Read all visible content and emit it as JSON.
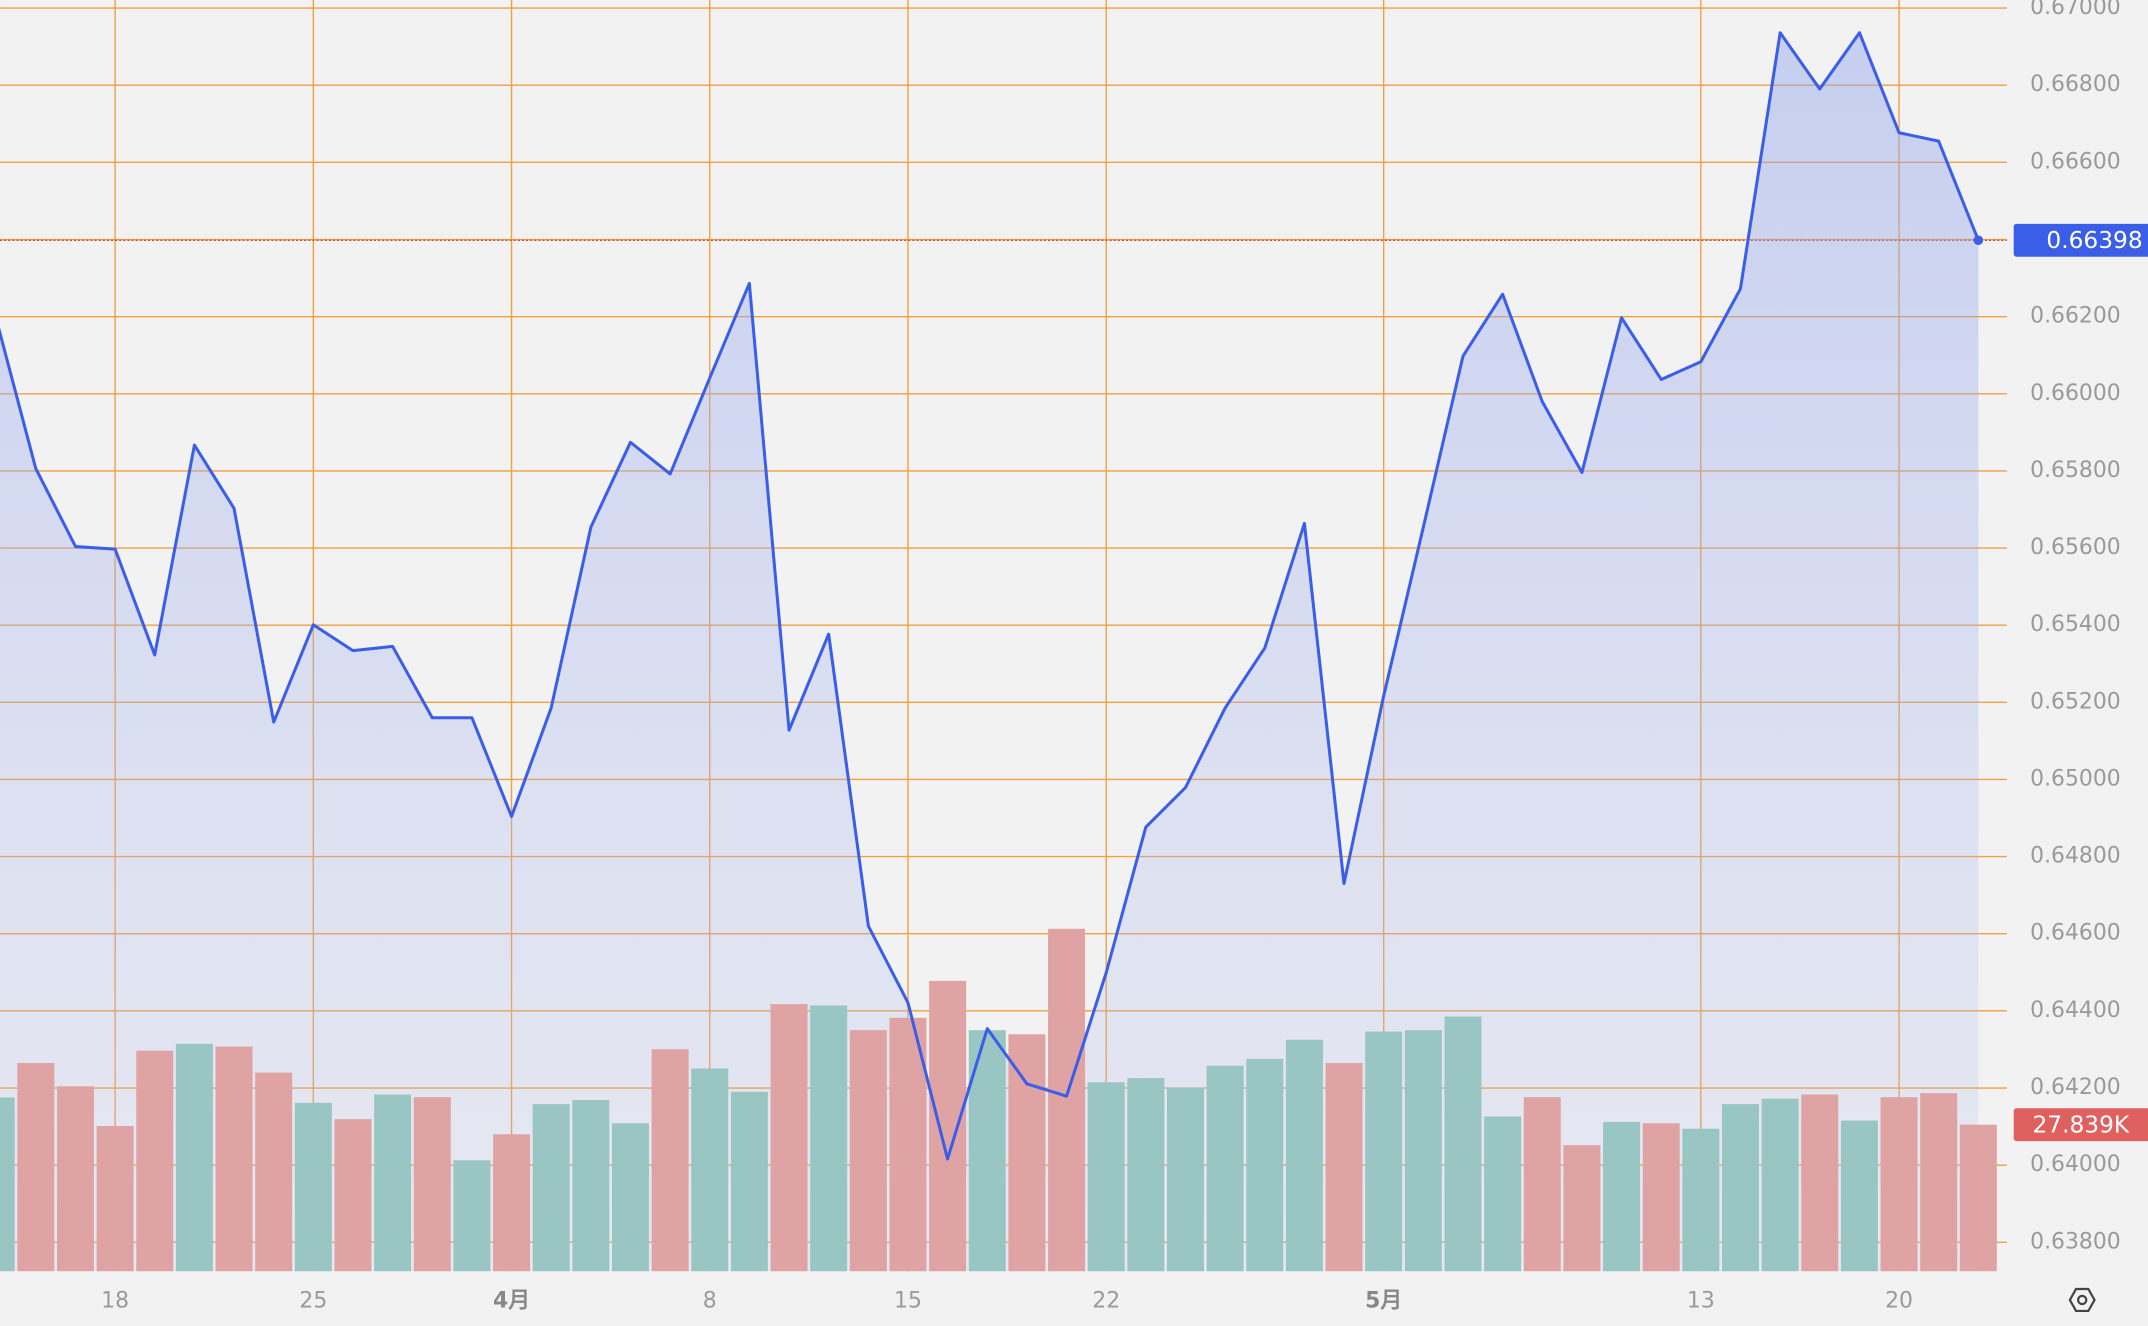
{
  "chart_data": {
    "type": "line",
    "categories": [
      null,
      null,
      null,
      "18",
      null,
      null,
      null,
      null,
      "25",
      null,
      null,
      null,
      null,
      "4月",
      null,
      null,
      null,
      null,
      "8",
      null,
      null,
      null,
      null,
      "15",
      null,
      null,
      null,
      null,
      "22",
      null,
      null,
      null,
      null,
      null,
      null,
      "5月",
      null,
      null,
      null,
      null,
      null,
      null,
      null,
      "13",
      null,
      null,
      null,
      null,
      "20",
      null,
      null
    ],
    "series": [
      {
        "color": "#3a5ee8",
        "values": [
          0.66194,
          0.65806,
          0.65604,
          0.65597,
          0.65323,
          0.65867,
          0.65703,
          0.65149,
          0.65401,
          0.65334,
          0.65345,
          0.6516,
          0.6516,
          0.64904,
          0.65185,
          0.65654,
          0.65874,
          0.65792,
          0.66041,
          0.66286,
          0.65128,
          0.65377,
          0.6462,
          0.64421,
          0.64016,
          0.64354,
          0.64211,
          0.64179,
          0.64499,
          0.64876,
          0.64979,
          0.65185,
          0.65341,
          0.65664,
          0.6473,
          0.65217,
          0.65654,
          0.66098,
          0.66258,
          0.6598,
          0.65796,
          0.66197,
          0.66037,
          0.66083,
          0.66272,
          0.66936,
          0.6679,
          0.66936,
          0.66677,
          0.66655,
          0.66398
        ]
      },
      {
        "axis": "y2",
        "values": [
          33000,
          39550,
          35130,
          27580,
          41890,
          43190,
          42670,
          37730,
          32000,
          28880,
          33570,
          33050,
          21080,
          26020,
          31740,
          32520,
          28100,
          42150,
          38510,
          34090,
          50740,
          50480,
          45790,
          48140,
          55160,
          45790,
          45010,
          65050,
          35900,
          36690,
          34870,
          39030,
          40330,
          43970,
          39550,
          45530,
          45790,
          48390,
          29400,
          33050,
          23940,
          28360,
          28100,
          27060,
          31740,
          32780,
          33570,
          28620,
          33050,
          33820,
          27839
        ],
        "colors": [
          "#99c6c3",
          "#e0a3a3",
          "#e0a3a3",
          "#e0a3a3",
          "#e0a3a3",
          "#99c6c3",
          "#e0a3a3",
          "#e0a3a3",
          "#99c6c3",
          "#e0a3a3",
          "#99c6c3",
          "#e0a3a3",
          "#99c6c3",
          "#e0a3a3",
          "#99c6c3",
          "#99c6c3",
          "#99c6c3",
          "#e0a3a3",
          "#99c6c3",
          "#99c6c3",
          "#e0a3a3",
          "#99c6c3",
          "#e0a3a3",
          "#e0a3a3",
          "#e0a3a3",
          "#99c6c3",
          "#e0a3a3",
          "#e0a3a3",
          "#99c6c3",
          "#99c6c3",
          "#99c6c3",
          "#99c6c3",
          "#99c6c3",
          "#99c6c3",
          "#e0a3a3",
          "#99c6c3",
          "#99c6c3",
          "#99c6c3",
          "#99c6c3",
          "#e0a3a3",
          "#e0a3a3",
          "#99c6c3",
          "#e0a3a3",
          "#99c6c3",
          "#99c6c3",
          "#99c6c3",
          "#e0a3a3",
          "#99c6c3",
          "#e0a3a3",
          "#e0a3a3",
          "#e0a3a3"
        ],
        "last_label": "27.839K",
        "last_label_color": "#e06060"
      }
    ],
    "ylim": [
      0.63725,
      0.67021
    ],
    "yticks": [
      {
        "value": 0.638,
        "label": "0.63800"
      },
      {
        "value": 0.64,
        "label": "0.64000"
      },
      {
        "value": 0.642,
        "label": "0.64200"
      },
      {
        "value": 0.644,
        "label": "0.64400"
      },
      {
        "value": 0.646,
        "label": "0.64600"
      },
      {
        "value": 0.648,
        "label": "0.64800"
      },
      {
        "value": 0.65,
        "label": "0.65000"
      },
      {
        "value": 0.652,
        "label": "0.65200"
      },
      {
        "value": 0.654,
        "label": "0.65400"
      },
      {
        "value": 0.656,
        "label": "0.65600"
      },
      {
        "value": 0.658,
        "label": "0.65800"
      },
      {
        "value": 0.66,
        "label": "0.66000"
      },
      {
        "value": 0.662,
        "label": "0.66200"
      },
      {
        "value": 0.664,
        "label": "0.66400"
      },
      {
        "value": 0.666,
        "label": "0.66600"
      },
      {
        "value": 0.668,
        "label": "0.66800"
      },
      {
        "value": 0.67,
        "label": "0.67000"
      }
    ],
    "y2lim": [
      0,
      241500
    ],
    "grid": true,
    "grid_color": "#f0a040"
  }
}
